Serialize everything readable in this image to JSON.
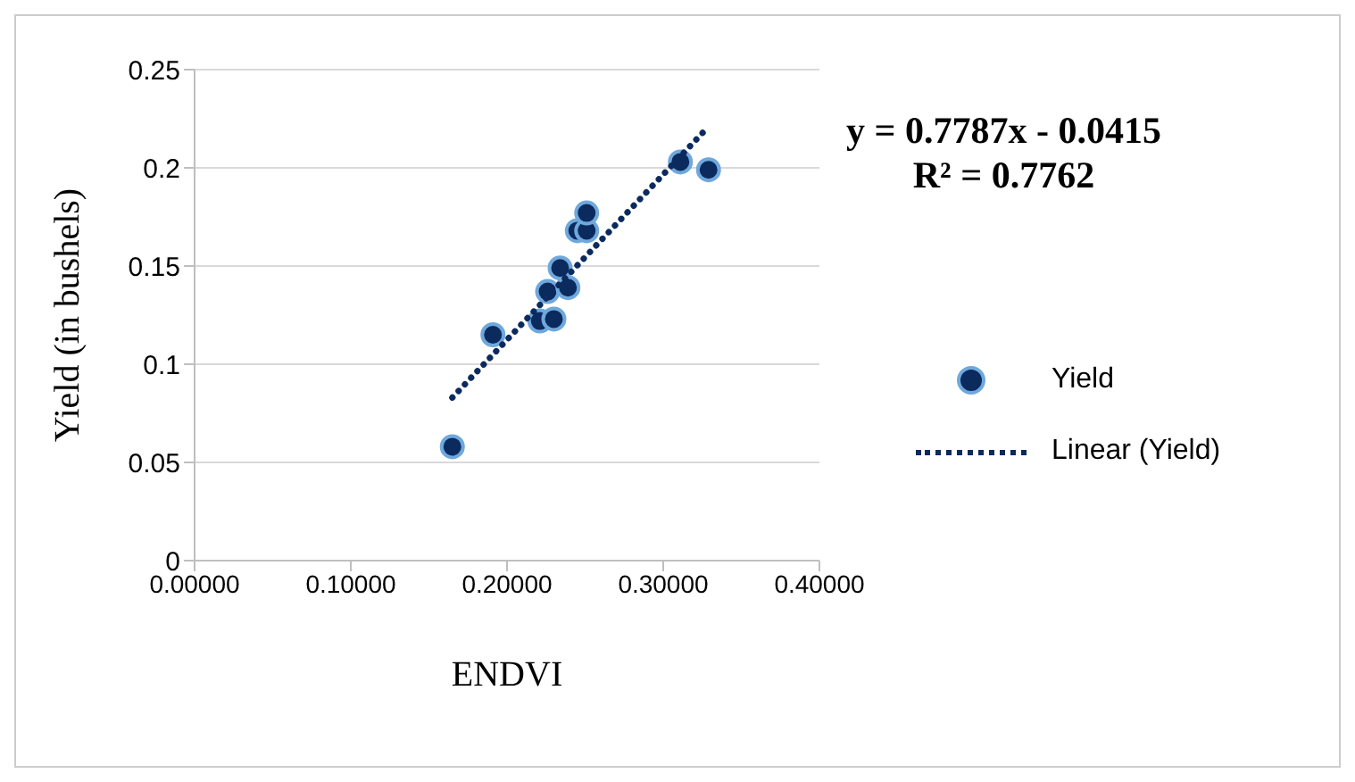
{
  "chart_data": {
    "type": "scatter",
    "xlabel": "ENDVI",
    "ylabel": "Yield (in bushels)",
    "xlim": [
      0,
      0.4
    ],
    "xticks": [
      {
        "value": 0,
        "label": "0.00000"
      },
      {
        "value": 0.1,
        "label": "0.10000"
      },
      {
        "value": 0.2,
        "label": "0.20000"
      },
      {
        "value": 0.3,
        "label": "0.30000"
      },
      {
        "value": 0.4,
        "label": "0.40000"
      }
    ],
    "ylim": [
      0,
      0.25
    ],
    "yticks": [
      0,
      0.05,
      0.1,
      0.15,
      0.2,
      0.25
    ],
    "grid": "y",
    "legend": "right",
    "marker": "circle",
    "annotations": [
      "y = 0.7787x - 0.0415",
      "R² = 0.7762"
    ],
    "series": [
      {
        "name": "Yield",
        "color": "#0b2a5e",
        "x": [
          0.165,
          0.191,
          0.221,
          0.23,
          0.226,
          0.239,
          0.234,
          0.245,
          0.251,
          0.251,
          0.311,
          0.329
        ],
        "values": [
          0.058,
          0.115,
          0.122,
          0.123,
          0.137,
          0.139,
          0.149,
          0.168,
          0.168,
          0.177,
          0.203,
          0.199
        ]
      },
      {
        "name": "Linear (Yield)",
        "type": "line",
        "line_style": "dotted",
        "marker": "none",
        "color": "#0b2a5e",
        "x": [
          0.165,
          0.329
        ],
        "values": [
          0.083,
          0.221
        ]
      }
    ]
  }
}
